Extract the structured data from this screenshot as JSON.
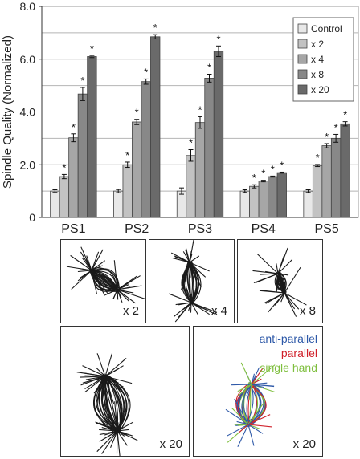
{
  "chart_data": {
    "type": "bar",
    "ylabel": "Spindle Quality (Normalized)",
    "ylim": [
      0,
      8
    ],
    "yticks": [
      "0",
      "2.0",
      "4.0",
      "6.0",
      "8.0"
    ],
    "grid": true,
    "legend_position": "top-right",
    "categories": [
      "PS1",
      "PS2",
      "PS3",
      "PS4",
      "PS5"
    ],
    "series": [
      {
        "name": "Control",
        "color": "#e8e8e8",
        "values": [
          1.0,
          1.0,
          1.0,
          1.0,
          1.0
        ],
        "errors": [
          0.05,
          0.06,
          0.12,
          0.05,
          0.05
        ],
        "significant": [
          false,
          false,
          false,
          false,
          false
        ]
      },
      {
        "name": "x 2",
        "color": "#c2c2c2",
        "values": [
          1.55,
          2.0,
          2.35,
          1.18,
          1.97
        ],
        "errors": [
          0.08,
          0.1,
          0.22,
          0.06,
          0.04
        ],
        "significant": [
          true,
          true,
          true,
          true,
          true
        ]
      },
      {
        "name": "x 4",
        "color": "#a6a6a6",
        "values": [
          3.02,
          3.62,
          3.6,
          1.38,
          2.72
        ],
        "errors": [
          0.15,
          0.1,
          0.22,
          0.03,
          0.08
        ],
        "significant": [
          true,
          true,
          true,
          true,
          true
        ]
      },
      {
        "name": "x 8",
        "color": "#888888",
        "values": [
          4.68,
          5.15,
          5.28,
          1.55,
          3.0
        ],
        "errors": [
          0.25,
          0.1,
          0.15,
          0.02,
          0.15
        ],
        "significant": [
          true,
          true,
          true,
          true,
          true
        ]
      },
      {
        "name": "x 20",
        "color": "#6a6a6a",
        "values": [
          6.1,
          6.85,
          6.3,
          1.7,
          3.55
        ],
        "errors": [
          0.04,
          0.08,
          0.2,
          0.02,
          0.08
        ],
        "significant": [
          true,
          true,
          true,
          true,
          true
        ]
      }
    ],
    "significance_marker": "*"
  },
  "panels": [
    {
      "label": "x 2"
    },
    {
      "label": "x 4"
    },
    {
      "label": "x 8"
    },
    {
      "label": "x 20"
    },
    {
      "label": "x 20"
    }
  ],
  "panel_legend": [
    {
      "label": "anti-parallel",
      "color": "#2e59a8"
    },
    {
      "label": "parallel",
      "color": "#d0202a"
    },
    {
      "label": "single hand",
      "color": "#7fbf3f"
    }
  ],
  "icons": {
    "spindle": "spindle-network-icon"
  }
}
